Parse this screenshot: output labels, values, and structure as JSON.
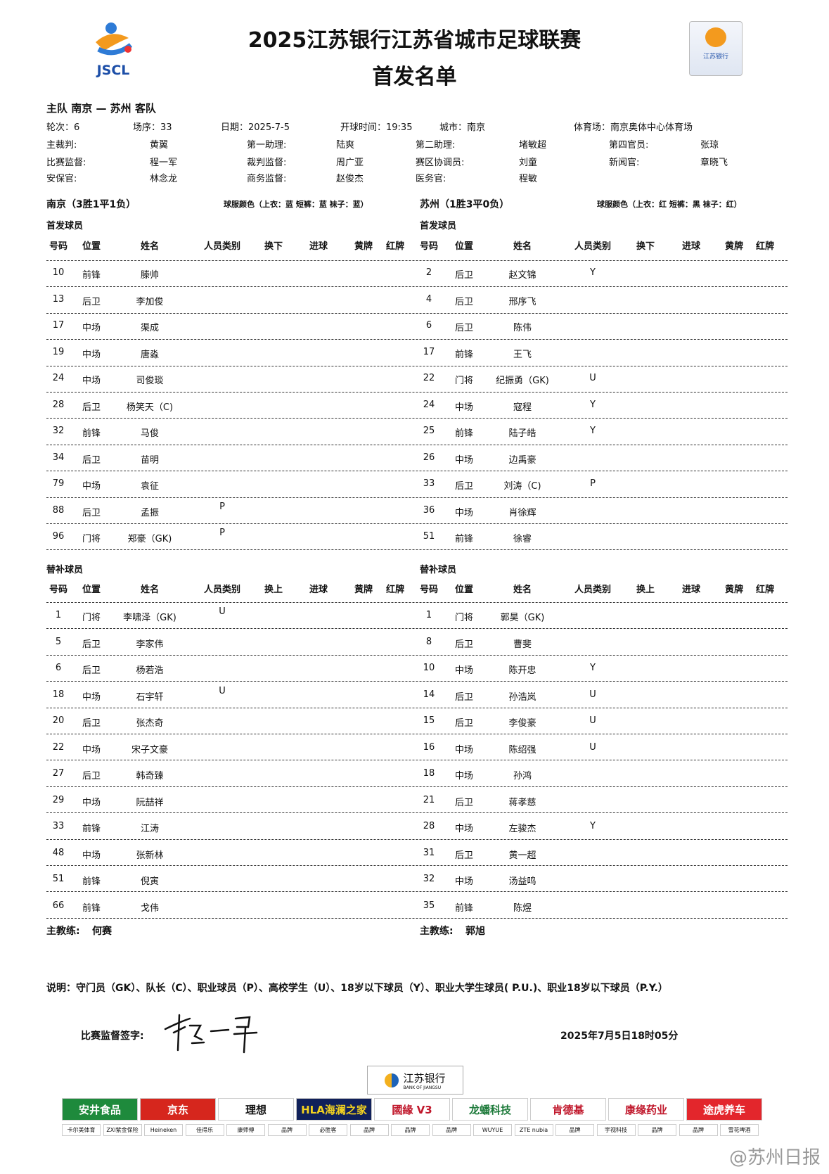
{
  "header": {
    "title": "2025江苏银行江苏省城市足球联赛",
    "subtitle": "首发名单",
    "logo_left_text": "JSCL",
    "logo_right_text": "江苏银行"
  },
  "match": {
    "teams_line": "主队 南京 — 苏州 客队",
    "round": "轮次：6",
    "match_no": "场序：33",
    "date": "日期：2025-7-5",
    "kickoff": "开球时间：19:35",
    "city": "城市：南京",
    "venue": "体育场：南京奥体中心体育场"
  },
  "officials": [
    {
      "label": "主裁判:",
      "name": "黄翼"
    },
    {
      "label": "第一助理:",
      "name": "陆爽"
    },
    {
      "label": "第二助理:",
      "name": "堵敏超"
    },
    {
      "label": "第四官员:",
      "name": "张琼"
    },
    {
      "label": "比赛监督:",
      "name": "程一军"
    },
    {
      "label": "裁判监督:",
      "name": "周广亚"
    },
    {
      "label": "赛区协调员:",
      "name": "刘童"
    },
    {
      "label": "新闻官:",
      "name": "章晓飞"
    },
    {
      "label": "安保官:",
      "name": "林念龙"
    },
    {
      "label": "商务监督:",
      "name": "赵俊杰"
    },
    {
      "label": "医务官:",
      "name": "程敏"
    }
  ],
  "home": {
    "title": "南京（3胜1平1负）",
    "kit": "球服颜色（上衣：蓝 短裤：蓝 袜子：蓝）",
    "starters_label": "首发球员",
    "subs_label": "替补球员",
    "coach_label": "主教练:",
    "coach": "何赛",
    "starters": [
      [
        "10",
        "前锋",
        "滕帅",
        ""
      ],
      [
        "13",
        "后卫",
        "李加俊",
        ""
      ],
      [
        "17",
        "中场",
        "渠成",
        ""
      ],
      [
        "19",
        "中场",
        "唐淼",
        ""
      ],
      [
        "24",
        "中场",
        "司俊琰",
        ""
      ],
      [
        "28",
        "后卫",
        "杨笑天（C)",
        ""
      ],
      [
        "32",
        "前锋",
        "马俊",
        ""
      ],
      [
        "34",
        "后卫",
        "苗明",
        ""
      ],
      [
        "79",
        "中场",
        "袁征",
        ""
      ],
      [
        "88",
        "后卫",
        "孟振",
        "P"
      ],
      [
        "96",
        "门将",
        "郑豪（GK)",
        "P"
      ]
    ],
    "subs": [
      [
        "1",
        "门将",
        "李啸泽（GK)",
        "U"
      ],
      [
        "5",
        "后卫",
        "李家伟",
        ""
      ],
      [
        "6",
        "后卫",
        "杨若浩",
        ""
      ],
      [
        "18",
        "中场",
        "石宇轩",
        "U"
      ],
      [
        "20",
        "后卫",
        "张杰奇",
        ""
      ],
      [
        "22",
        "中场",
        "宋子文豪",
        ""
      ],
      [
        "27",
        "后卫",
        "韩奇臻",
        ""
      ],
      [
        "29",
        "中场",
        "阮喆祥",
        ""
      ],
      [
        "33",
        "前锋",
        "江涛",
        ""
      ],
      [
        "48",
        "中场",
        "张新林",
        ""
      ],
      [
        "51",
        "前锋",
        "倪寅",
        ""
      ],
      [
        "66",
        "前锋",
        "戈伟",
        ""
      ]
    ]
  },
  "away": {
    "title": "苏州（1胜3平0负）",
    "kit": "球服颜色（上衣：红 短裤：黑 袜子：红）",
    "starters_label": "首发球员",
    "subs_label": "替补球员",
    "coach_label": "主教练:",
    "coach": "郭旭",
    "starters": [
      [
        "2",
        "后卫",
        "赵文锦",
        "Y"
      ],
      [
        "4",
        "后卫",
        "邢序飞",
        ""
      ],
      [
        "6",
        "后卫",
        "陈伟",
        ""
      ],
      [
        "17",
        "前锋",
        "王飞",
        ""
      ],
      [
        "22",
        "门将",
        "纪振勇（GK)",
        "U"
      ],
      [
        "24",
        "中场",
        "寇程",
        "Y"
      ],
      [
        "25",
        "前锋",
        "陆子皓",
        "Y"
      ],
      [
        "26",
        "中场",
        "边禹豪",
        ""
      ],
      [
        "33",
        "后卫",
        "刘涛（C)",
        "P"
      ],
      [
        "36",
        "中场",
        "肖徐辉",
        ""
      ],
      [
        "51",
        "前锋",
        "徐睿",
        ""
      ]
    ],
    "subs": [
      [
        "1",
        "门将",
        "郭昊（GK)",
        ""
      ],
      [
        "8",
        "后卫",
        "曹斐",
        ""
      ],
      [
        "10",
        "中场",
        "陈开忠",
        "Y"
      ],
      [
        "14",
        "后卫",
        "孙浩岚",
        "U"
      ],
      [
        "15",
        "后卫",
        "李俊豪",
        "U"
      ],
      [
        "16",
        "中场",
        "陈绍强",
        "U"
      ],
      [
        "18",
        "中场",
        "孙鸿",
        ""
      ],
      [
        "21",
        "后卫",
        "蒋孝慈",
        ""
      ],
      [
        "28",
        "中场",
        "左骏杰",
        "Y"
      ],
      [
        "31",
        "后卫",
        "黄一超",
        ""
      ],
      [
        "32",
        "中场",
        "汤益鸣",
        ""
      ],
      [
        "35",
        "前锋",
        "陈煜",
        ""
      ]
    ]
  },
  "columns_starters": [
    "号码",
    "位置",
    "姓名",
    "人员类别",
    "换下",
    "进球",
    "黄牌",
    "红牌"
  ],
  "columns_subs": [
    "号码",
    "位置",
    "姓名",
    "人员类别",
    "换上",
    "进球",
    "黄牌",
    "红牌"
  ],
  "legend": "说明：守门员（GK）、队长（C）、职业球员（P）、高校学生（U）、18岁以下球员（Y）、职业大学生球员( P.U.)、职业18岁以下球员（P.Y.）",
  "signature": {
    "label": "比赛监督签字:",
    "signed_name": "程一军",
    "datetime": "2025年7月5日18时05分"
  },
  "sponsors": {
    "title": {
      "name": "江苏银行",
      "en": "BANK OF JIANGSU"
    },
    "row1": [
      {
        "n": "安井食品",
        "bg": "#1e8a3c",
        "fg": "#fff"
      },
      {
        "n": "京东",
        "bg": "#d6261d",
        "fg": "#fff"
      },
      {
        "n": "理想",
        "bg": "#fff",
        "fg": "#111"
      },
      {
        "n": "HLA海澜之家",
        "bg": "#10205a",
        "fg": "#f3d21f"
      },
      {
        "n": "國緣 V3",
        "bg": "#fff",
        "fg": "#c0172b"
      },
      {
        "n": "龙蟠科技",
        "bg": "#fff",
        "fg": "#1d7a3a"
      },
      {
        "n": "肯德基",
        "bg": "#fff",
        "fg": "#c0172b"
      },
      {
        "n": "康缘药业",
        "bg": "#fff",
        "fg": "#c0172b"
      },
      {
        "n": "途虎养车",
        "bg": "#e3262c",
        "fg": "#fff"
      }
    ],
    "row2": [
      "卡尔美体育",
      "ZXI紫金保险",
      "Heineken",
      "佳得乐",
      "康师傅",
      "品牌",
      "必胜客",
      "品牌",
      "品牌",
      "品牌",
      "WUYUE",
      "ZTE nubia",
      "品牌",
      "宇视科技",
      "品牌",
      "品牌",
      "雪花啤酒"
    ]
  },
  "watermark": "@苏州日报"
}
